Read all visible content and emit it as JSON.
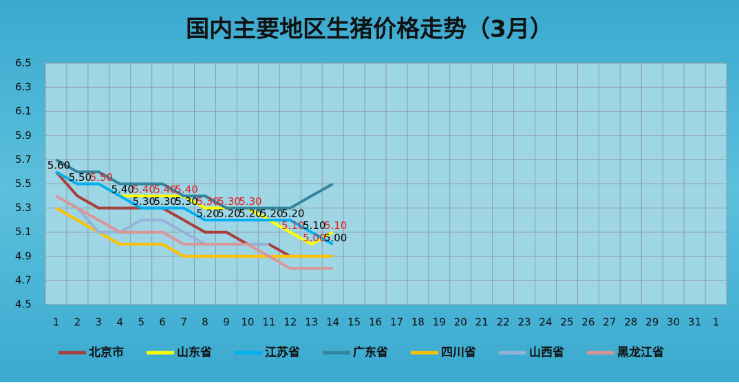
{
  "chart_data": {
    "type": "line",
    "title": "国内主要地区生猪价格走势（3月）",
    "categories": [
      "1",
      "2",
      "3",
      "4",
      "5",
      "6",
      "7",
      "8",
      "9",
      "10",
      "11",
      "12",
      "13",
      "14",
      "15",
      "16",
      "17",
      "18",
      "19",
      "20",
      "21",
      "22",
      "23",
      "24",
      "25",
      "26",
      "27",
      "28",
      "29",
      "30",
      "31",
      "1"
    ],
    "ylim": [
      4.5,
      6.5
    ],
    "yticks": [
      4.5,
      4.7,
      4.9,
      5.1,
      5.3,
      5.5,
      5.7,
      5.9,
      6.1,
      6.3,
      6.5
    ],
    "grid": true,
    "legend": "bottom",
    "series": [
      {
        "name": "北京市",
        "color": "#a5403d",
        "values": [
          5.6,
          5.4,
          5.3,
          5.3,
          5.3,
          5.3,
          5.2,
          5.1,
          5.1,
          5.0,
          5.0,
          4.9,
          null,
          null,
          null,
          null,
          null,
          null,
          null,
          null,
          null,
          null,
          null,
          null,
          null,
          null,
          null,
          null,
          null,
          null,
          null,
          null
        ]
      },
      {
        "name": "山东省",
        "color": "#ffff00",
        "label_color": "#e02020",
        "values": [
          5.6,
          5.5,
          5.5,
          5.4,
          5.4,
          5.4,
          5.4,
          5.3,
          5.3,
          5.3,
          5.2,
          5.1,
          5.0,
          5.1,
          null,
          null,
          null,
          null,
          null,
          null,
          null,
          null,
          null,
          null,
          null,
          null,
          null,
          null,
          null,
          null,
          null,
          null
        ],
        "value_labels": [
          "5.60",
          null,
          "5.50",
          null,
          "5.40",
          "5.40",
          "5.40",
          "5.30",
          "5.30",
          "5.30",
          null,
          "5.10",
          "5.00",
          "5.10",
          null,
          null,
          null,
          null,
          null,
          null,
          null,
          null,
          null,
          null,
          null,
          null,
          null,
          null,
          null,
          null,
          null,
          null
        ]
      },
      {
        "name": "江苏省",
        "color": "#00b0f0",
        "label_color": "#000000",
        "values": [
          5.6,
          5.5,
          5.5,
          5.4,
          5.3,
          5.3,
          5.3,
          5.2,
          5.2,
          5.2,
          5.2,
          5.2,
          5.1,
          5.0,
          null,
          null,
          null,
          null,
          null,
          null,
          null,
          null,
          null,
          null,
          null,
          null,
          null,
          null,
          null,
          null,
          null,
          null
        ],
        "value_labels": [
          "5.60",
          "5.50",
          null,
          "5.40",
          "5.30",
          "5.30",
          "5.30",
          "5.20",
          "5.20",
          "5.20",
          "5.20",
          "5.20",
          "5.10",
          "5.00",
          null,
          null,
          null,
          null,
          null,
          null,
          null,
          null,
          null,
          null,
          null,
          null,
          null,
          null,
          null,
          null,
          null,
          null
        ]
      },
      {
        "name": "广东省",
        "color": "#31859c",
        "values": [
          5.7,
          5.6,
          5.6,
          5.5,
          5.5,
          5.5,
          5.4,
          5.4,
          5.3,
          5.3,
          5.3,
          5.3,
          5.4,
          5.5,
          null,
          null,
          null,
          null,
          null,
          null,
          null,
          null,
          null,
          null,
          null,
          null,
          null,
          null,
          null,
          null,
          null,
          null
        ]
      },
      {
        "name": "四川省",
        "color": "#ffc000",
        "values": [
          5.3,
          5.2,
          5.1,
          5.0,
          5.0,
          5.0,
          4.9,
          4.9,
          4.9,
          4.9,
          4.9,
          4.9,
          4.9,
          4.9,
          null,
          null,
          null,
          null,
          null,
          null,
          null,
          null,
          null,
          null,
          null,
          null,
          null,
          null,
          null,
          null,
          null,
          null
        ]
      },
      {
        "name": "山西省",
        "color": "#95b3d7",
        "values": [
          5.4,
          5.3,
          5.1,
          5.1,
          5.2,
          5.2,
          5.1,
          5.0,
          5.0,
          5.0,
          5.0,
          null,
          null,
          null,
          null,
          null,
          null,
          null,
          null,
          null,
          null,
          null,
          null,
          null,
          null,
          null,
          null,
          null,
          null,
          null,
          null,
          null
        ]
      },
      {
        "name": "黑龙江省",
        "color": "#d99694",
        "values": [
          5.4,
          5.3,
          5.2,
          5.1,
          5.1,
          5.1,
          5.0,
          5.0,
          5.0,
          5.0,
          4.9,
          4.8,
          4.8,
          4.8,
          null,
          null,
          null,
          null,
          null,
          null,
          null,
          null,
          null,
          null,
          null,
          null,
          null,
          null,
          null,
          null,
          null,
          null
        ]
      }
    ]
  }
}
